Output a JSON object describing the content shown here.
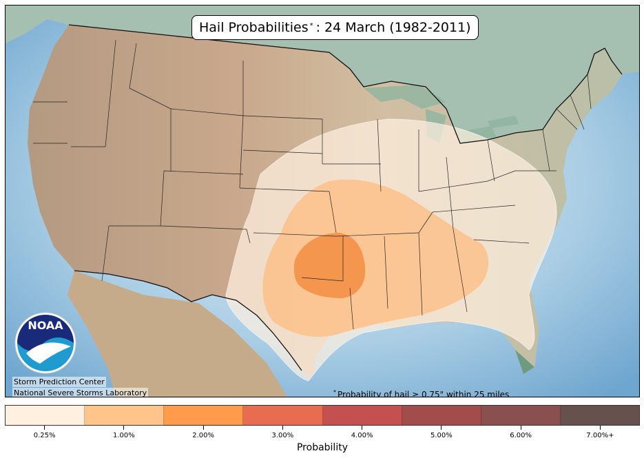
{
  "title": {
    "prefix": "Hail Probabilities",
    "marker": "*",
    "suffix": ": 24 March (1982-2011)"
  },
  "logo": {
    "text": "NOAA"
  },
  "credits": {
    "line1": "Storm Prediction Center",
    "line2": "National Severe Storms Laboratory"
  },
  "footnote": {
    "marker": "*",
    "text": "Probability of hail ≥ 0.75\" within 25 miles"
  },
  "colorbar": {
    "title": "Probability",
    "levels": [
      {
        "label": "0.25%",
        "value": 0.25,
        "color": "#fff0e0"
      },
      {
        "label": "1.00%",
        "value": 1.0,
        "color": "#ffc489"
      },
      {
        "label": "2.00%",
        "value": 2.0,
        "color": "#ff9b4a"
      },
      {
        "label": "3.00%",
        "value": 3.0,
        "color": "#e86c4f"
      },
      {
        "label": "4.00%",
        "value": 4.0,
        "color": "#c55050"
      },
      {
        "label": "5.00%",
        "value": 5.0,
        "color": "#a34c4c"
      },
      {
        "label": "6.00%",
        "value": 6.0,
        "color": "#8a5050"
      },
      {
        "label": "7.00%+",
        "value": 7.0,
        "color": "#66514e"
      }
    ]
  },
  "colors": {
    "ocean": "#8fbedc",
    "land": "#c8ad8a",
    "canada": "#9cb8a9",
    "mexico": "#c9b08e"
  }
}
